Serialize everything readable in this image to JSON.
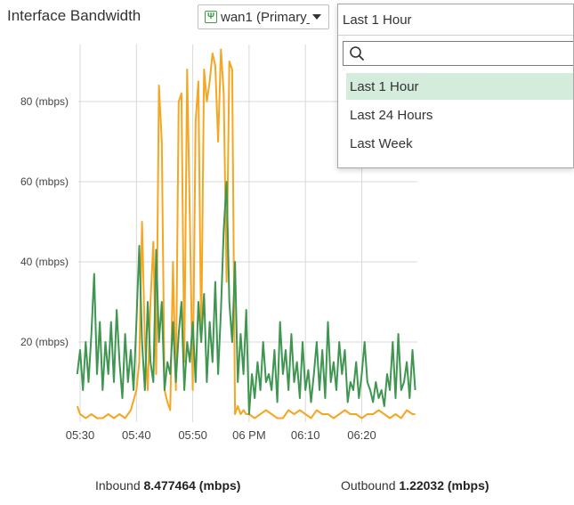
{
  "header": {
    "title": "Interface Bandwidth",
    "interface_select": {
      "label": "wan1 (Primary_",
      "icon": "network-port-icon"
    }
  },
  "time_dropdown": {
    "value": "Last 1 Hour",
    "search_placeholder": "",
    "options": [
      "Last 1 Hour",
      "Last 24 Hours",
      "Last Week"
    ],
    "selected_index": 0,
    "highlight_color": "#d4ecdb"
  },
  "footer": {
    "inbound_label": "Inbound",
    "inbound_value": "8.477464 (mbps)",
    "outbound_label": "Outbound",
    "outbound_value": "1.22032 (mbps)"
  },
  "chart_data": {
    "type": "line",
    "ylabel_unit": "(mbps)",
    "ylim": [
      0,
      90
    ],
    "yticks": [
      20,
      40,
      60,
      80
    ],
    "ytick_labels": [
      "20 (mbps)",
      "40 (mbps)",
      "60 (mbps)",
      "80 (mbps)"
    ],
    "x_ticks": [
      "05:30",
      "05:40",
      "05:50",
      "06 PM",
      "06:10",
      "06:20"
    ],
    "x_tick_minutes": [
      0,
      10,
      20,
      30,
      40,
      50
    ],
    "xlim_minutes": [
      -0.5,
      59.5
    ],
    "grid": true,
    "legend": "none",
    "series": [
      {
        "color": "#f5a623",
        "x": [
          -0.5,
          0,
          1,
          2,
          3,
          4,
          5,
          6,
          7,
          8,
          9,
          10,
          10.5,
          11,
          11.5,
          12,
          12.5,
          13,
          13.5,
          14,
          14.5,
          15,
          15.5,
          16,
          16.5,
          17,
          17.5,
          18,
          18.5,
          19,
          19.5,
          20,
          20.5,
          21,
          21.5,
          22,
          22.5,
          23,
          23.5,
          24,
          24.5,
          25,
          25.5,
          26,
          26.5,
          27,
          27.5,
          28,
          28.5,
          29,
          29.5,
          30,
          31,
          32,
          33,
          34,
          35,
          36,
          37,
          38,
          39,
          40,
          41,
          42,
          43,
          44,
          45,
          46,
          47,
          48,
          49,
          50,
          51,
          52,
          53,
          54,
          55,
          56,
          57,
          58,
          59,
          59.5
        ],
        "y": [
          4,
          2,
          1,
          2,
          1,
          1,
          2,
          1,
          2,
          1,
          3,
          8,
          15,
          50,
          20,
          8,
          30,
          45,
          12,
          84,
          70,
          8,
          5,
          3,
          40,
          8,
          80,
          82,
          15,
          88,
          50,
          8,
          75,
          85,
          20,
          88,
          80,
          85,
          92,
          89,
          70,
          93,
          82,
          35,
          90,
          88,
          2,
          4,
          2,
          3,
          2,
          2,
          1,
          2,
          3,
          2,
          1,
          1,
          3,
          2,
          3,
          2,
          1,
          3,
          2,
          2,
          1,
          2,
          3,
          2,
          2,
          1,
          2,
          2,
          3,
          2,
          1,
          2,
          1,
          3,
          2,
          2
        ]
      },
      {
        "color": "#3e9651",
        "x": [
          -0.5,
          0,
          0.5,
          1,
          1.5,
          2,
          2.5,
          3,
          3.5,
          4,
          4.5,
          5,
          5.5,
          6,
          6.5,
          7,
          7.5,
          8,
          8.5,
          9,
          9.5,
          10,
          10.5,
          11,
          11.5,
          12,
          12.5,
          13,
          13.5,
          14,
          14.5,
          15,
          15.5,
          16,
          16.5,
          17,
          17.5,
          18,
          18.5,
          19,
          19.5,
          20,
          20.5,
          21,
          21.5,
          22,
          22.5,
          23,
          23.5,
          24,
          24.5,
          25,
          25.5,
          26,
          26.5,
          27,
          27.5,
          28,
          28.5,
          29,
          29.5,
          30,
          30.5,
          31,
          31.5,
          32,
          32.5,
          33,
          33.5,
          34,
          34.5,
          35,
          35.5,
          36,
          36.5,
          37,
          37.5,
          38,
          38.5,
          39,
          39.5,
          40,
          40.5,
          41,
          41.5,
          42,
          42.5,
          43,
          43.5,
          44,
          44.5,
          45,
          45.5,
          46,
          46.5,
          47,
          47.5,
          48,
          48.5,
          49,
          49.5,
          50,
          50.5,
          51,
          51.5,
          52,
          52.5,
          53,
          53.5,
          54,
          54.5,
          55,
          55.5,
          56,
          56.5,
          57,
          57.5,
          58,
          58.5,
          59,
          59.5
        ],
        "y": [
          12,
          18,
          8,
          20,
          10,
          22,
          37,
          12,
          25,
          8,
          20,
          12,
          25,
          10,
          28,
          15,
          6,
          22,
          10,
          18,
          8,
          25,
          44,
          20,
          8,
          30,
          15,
          10,
          43,
          20,
          30,
          8,
          15,
          12,
          25,
          10,
          22,
          30,
          8,
          20,
          15,
          25,
          10,
          30,
          20,
          32,
          10,
          25,
          15,
          35,
          12,
          28,
          48,
          60,
          30,
          20,
          40,
          10,
          22,
          12,
          28,
          2,
          12,
          6,
          15,
          8,
          20,
          10,
          12,
          8,
          18,
          5,
          25,
          12,
          18,
          8,
          22,
          10,
          15,
          6,
          20,
          8,
          13,
          5,
          12,
          20,
          8,
          18,
          6,
          25,
          10,
          15,
          8,
          20,
          12,
          18,
          5,
          10,
          8,
          15,
          6,
          12,
          20,
          10,
          8,
          5,
          10,
          6,
          8,
          4,
          12,
          8,
          20,
          6,
          22,
          8,
          10,
          15,
          6,
          18,
          8
        ]
      }
    ]
  }
}
